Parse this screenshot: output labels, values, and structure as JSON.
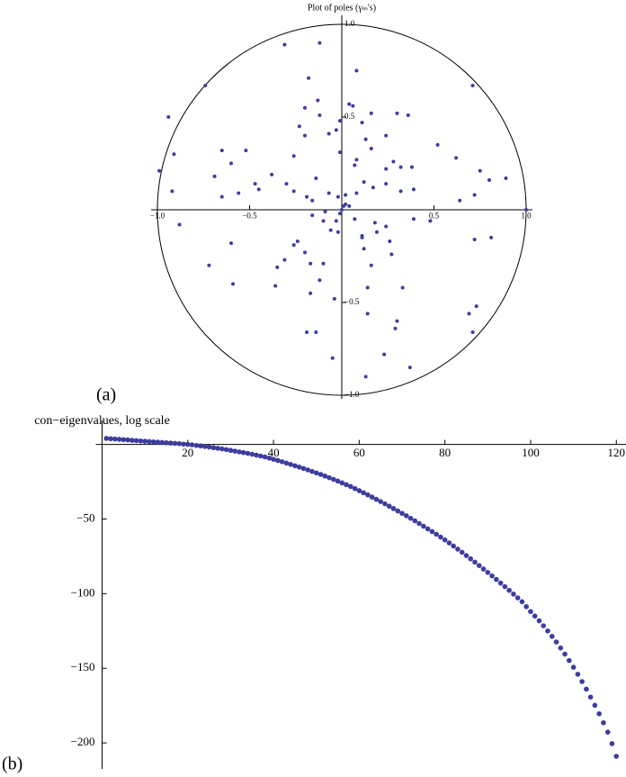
{
  "chart_data": [
    {
      "type": "scatter",
      "title": "Plot of poles (γₘ's)",
      "panel_label": "(a)",
      "color": "#3d3d9e",
      "unit_circle": true,
      "xlim": [
        -1,
        1
      ],
      "ylim": [
        -1,
        1
      ],
      "xticks": [
        {
          "value": -1,
          "label": "−1.0"
        },
        {
          "value": -0.5,
          "label": "−0.5"
        },
        0.5,
        {
          "value": 1,
          "label": "1.0"
        }
      ],
      "yticks": [
        {
          "value": 1,
          "label": "1.0"
        },
        0.5,
        {
          "value": -0.5,
          "label": "−0.5"
        },
        {
          "value": -1,
          "label": "−1.0"
        }
      ],
      "x": [
        -0.12,
        -0.31,
        0.08,
        -0.74,
        0.71,
        -0.18,
        -0.94,
        -0.13,
        -0.2,
        -0.12,
        0.04,
        0.06,
        0.11,
        0.16,
        0.3,
        0.36,
        -0.03,
        -0.01,
        -0.23,
        -0.07,
        -0.2,
        0.24,
        -0.91,
        -0.65,
        -0.52,
        -0.26,
        0.13,
        0.16,
        0.28,
        0.52,
        0.62,
        0.08,
        0.07,
        -0.01,
        -0.69,
        -0.6,
        -0.99,
        -0.45,
        -0.47,
        -0.38,
        -0.3,
        -0.14,
        0.24,
        0.32,
        0.38,
        0.17,
        0.24,
        0.32,
        0.39,
        0.75,
        0.8,
        0.89,
        -0.92,
        -0.65,
        -0.56,
        -0.26,
        -0.19,
        -0.16,
        -0.07,
        -0.02,
        0.02,
        0.08,
        0.12,
        0.02,
        0.04,
        0.01,
        0.0,
        0.64,
        0.72,
        1.0,
        -0.01,
        -0.03,
        -0.09,
        -0.1,
        -0.16,
        -0.06,
        -0.02,
        0.07,
        0.11,
        0.18,
        0.19,
        0.24,
        0.26,
        0.39,
        0.48,
        -0.6,
        -0.88,
        -0.72,
        -0.59,
        -0.35,
        -0.31,
        -0.26,
        -0.24,
        -0.2,
        -0.17,
        -0.1,
        -0.17,
        -0.12,
        -0.04,
        -0.36,
        0.11,
        0.12,
        0.16,
        0.27,
        0.33,
        0.14,
        0.14,
        0.29,
        0.3,
        0.37,
        0.13,
        0.23,
        -0.19,
        -0.14,
        -0.05,
        0.69,
        0.73,
        0.71,
        0.72,
        0.81
      ],
      "values": [
        0.9,
        0.89,
        0.75,
        0.67,
        0.67,
        0.71,
        0.5,
        0.59,
        0.55,
        0.51,
        0.57,
        0.56,
        0.47,
        0.52,
        0.52,
        0.51,
        0.43,
        0.48,
        0.45,
        0.41,
        0.4,
        0.4,
        0.3,
        0.32,
        0.32,
        0.29,
        0.38,
        0.33,
        0.26,
        0.35,
        0.28,
        0.27,
        0.24,
        0.31,
        0.18,
        0.25,
        0.21,
        0.11,
        0.14,
        0.19,
        0.14,
        0.17,
        0.22,
        0.23,
        0.23,
        0.12,
        0.14,
        0.1,
        0.11,
        0.21,
        0.16,
        0.17,
        0.1,
        0.07,
        0.09,
        0.1,
        0.07,
        0.05,
        0.09,
        0.07,
        0.08,
        0.09,
        0.15,
        0.03,
        0.02,
        0.02,
        0.0,
        0.05,
        0.08,
        0.0,
        -0.02,
        -0.06,
        -0.01,
        -0.06,
        -0.03,
        -0.11,
        -0.12,
        -0.05,
        -0.14,
        -0.07,
        -0.12,
        -0.09,
        -0.17,
        -0.05,
        -0.06,
        -0.18,
        -0.08,
        -0.3,
        -0.4,
        -0.31,
        -0.27,
        -0.19,
        -0.17,
        -0.23,
        -0.29,
        -0.29,
        -0.45,
        -0.38,
        -0.48,
        -0.41,
        -0.15,
        -0.21,
        -0.3,
        -0.24,
        -0.42,
        -0.42,
        -0.56,
        -0.64,
        -0.6,
        -0.85,
        -0.9,
        -0.78,
        -0.66,
        -0.66,
        -0.8,
        -0.56,
        -0.52,
        -0.66,
        -0.16,
        -0.15
      ]
    },
    {
      "type": "scatter",
      "title": "con−eigenvalues, log scale",
      "panel_label": "(b)",
      "color": "#3d3d9e",
      "xlim": [
        0,
        121
      ],
      "ylim": [
        -215,
        10
      ],
      "xticks": [
        20,
        40,
        60,
        80,
        100,
        120
      ],
      "yticks": [
        {
          "value": -50,
          "label": "−50"
        },
        {
          "value": -100,
          "label": "−100"
        },
        {
          "value": -150,
          "label": "−150"
        },
        {
          "value": -200,
          "label": "−200"
        }
      ],
      "x": [
        1,
        2,
        3,
        4,
        5,
        6,
        7,
        8,
        9,
        10,
        11,
        12,
        13,
        14,
        15,
        16,
        17,
        18,
        19,
        20,
        21,
        22,
        23,
        24,
        25,
        26,
        27,
        28,
        29,
        30,
        31,
        32,
        33,
        34,
        35,
        36,
        37,
        38,
        39,
        40,
        41,
        42,
        43,
        44,
        45,
        46,
        47,
        48,
        49,
        50,
        51,
        52,
        53,
        54,
        55,
        56,
        57,
        58,
        59,
        60,
        61,
        62,
        63,
        64,
        65,
        66,
        67,
        68,
        69,
        70,
        71,
        72,
        73,
        74,
        75,
        76,
        77,
        78,
        79,
        80,
        81,
        82,
        83,
        84,
        85,
        86,
        87,
        88,
        89,
        90,
        91,
        92,
        93,
        94,
        95,
        96,
        97,
        98,
        99,
        100,
        101,
        102,
        103,
        104,
        105,
        106,
        107,
        108,
        109,
        110,
        111,
        112,
        113,
        114,
        115,
        116,
        117,
        118,
        119,
        120
      ],
      "values": [
        4.0,
        3.8,
        3.6,
        3.4,
        3.2,
        3.0,
        2.7,
        2.5,
        2.3,
        2.1,
        1.9,
        1.7,
        1.5,
        1.3,
        1.1,
        0.9,
        0.7,
        0.5,
        0.2,
        0.0,
        -0.3,
        -0.7,
        -1.0,
        -1.4,
        -1.8,
        -2.2,
        -2.6,
        -3.0,
        -3.5,
        -4.0,
        -4.5,
        -5.0,
        -5.5,
        -6.0,
        -6.6,
        -7.2,
        -7.8,
        -8.4,
        -9.2,
        -10.0,
        -10.8,
        -11.6,
        -12.5,
        -13.4,
        -14.3,
        -15.2,
        -16.1,
        -17.1,
        -18.1,
        -19.1,
        -20.1,
        -21.2,
        -22.3,
        -23.4,
        -24.6,
        -25.8,
        -27.0,
        -28.2,
        -29.6,
        -31.0,
        -32.4,
        -33.8,
        -35.3,
        -36.8,
        -38.3,
        -39.8,
        -41.4,
        -43.0,
        -44.6,
        -46.2,
        -47.8,
        -49.5,
        -51.2,
        -53.0,
        -54.8,
        -56.6,
        -58.4,
        -60.2,
        -62.1,
        -64.0,
        -66.0,
        -68.1,
        -70.2,
        -72.3,
        -74.5,
        -76.7,
        -78.9,
        -81.2,
        -83.5,
        -85.8,
        -88.1,
        -90.5,
        -92.9,
        -95.3,
        -97.8,
        -100.3,
        -102.8,
        -105.4,
        -108.7,
        -112.0,
        -115.0,
        -118.2,
        -121.5,
        -125.0,
        -128.6,
        -132.4,
        -136.4,
        -140.5,
        -144.8,
        -149.3,
        -154.0,
        -158.9,
        -164.0,
        -169.3,
        -174.8,
        -180.5,
        -186.5,
        -192.8,
        -200.5,
        -209.0
      ]
    }
  ]
}
